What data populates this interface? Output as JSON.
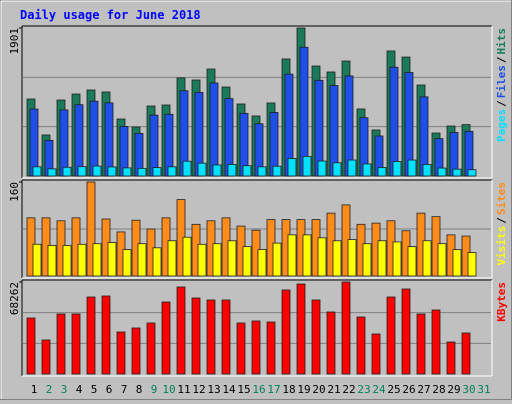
{
  "chart_data": {
    "type": "bar",
    "title": "Daily usage for June 2018",
    "separator": "/",
    "categories": [
      "1",
      "2",
      "3",
      "4",
      "5",
      "6",
      "7",
      "8",
      "9",
      "10",
      "11",
      "12",
      "13",
      "14",
      "15",
      "16",
      "17",
      "18",
      "19",
      "20",
      "21",
      "22",
      "23",
      "24",
      "25",
      "26",
      "27",
      "28",
      "29",
      "30",
      "31"
    ],
    "weekday_color": "#000000",
    "weekend_color": "#00805c",
    "weekend": [
      false,
      true,
      true,
      false,
      false,
      false,
      false,
      false,
      true,
      true,
      false,
      false,
      false,
      false,
      false,
      true,
      true,
      false,
      false,
      false,
      false,
      false,
      true,
      true,
      false,
      false,
      false,
      false,
      false,
      true,
      true
    ],
    "panels": [
      {
        "ylim": [
          0,
          1901
        ],
        "yticks": [
          1901
        ],
        "series": [
          {
            "name": "Pages",
            "color": "#00e0ff",
            "values": [
              118,
              92,
              112,
              120,
              128,
              116,
              104,
              98,
              108,
              118,
              190,
              165,
              142,
              148,
              132,
              118,
              126,
              225,
              252,
              192,
              170,
              205,
              155,
              110,
              185,
              205,
              148,
              102,
              88,
              80,
              null
            ]
          },
          {
            "name": "Files",
            "color": "#1f4fe8",
            "values": [
              860,
              458,
              849,
              916,
              961,
              939,
              637,
              547,
              782,
              793,
              1095,
              1073,
              1195,
              994,
              805,
              671,
              816,
              1308,
              1654,
              1229,
              1162,
              1285,
              749,
              514,
              1397,
              1329,
              1017,
              480,
              559,
              574,
              null
            ]
          },
          {
            "name": "Hits",
            "color": "#1a7a5a",
            "values": [
              989,
              527,
              976,
              1053,
              1105,
              1079,
              732,
              629,
              899,
              912,
              1259,
              1233,
              1374,
              1143,
              925,
              771,
              938,
              1503,
              1901,
              1413,
              1336,
              1477,
              861,
              591,
              1606,
              1528,
              1169,
              552,
              642,
              660,
              null
            ]
          }
        ]
      },
      {
        "ylim": [
          0,
          160
        ],
        "yticks": [
          160
        ],
        "series": [
          {
            "name": "Visits",
            "color": "#ffff00",
            "values": [
              54,
              52,
              52,
              54,
              55,
              57,
              45,
              55,
              48,
              60,
              66,
              54,
              55,
              60,
              50,
              45,
              56,
              70,
              70,
              65,
              60,
              62,
              55,
              60,
              58,
              50,
              60,
              55,
              45,
              40,
              null
            ]
          },
          {
            "name": "Sites",
            "color": "#ff8c1a",
            "values": [
              99,
              99,
              94,
              99,
              160,
              97,
              75,
              95,
              80,
              99,
              130,
              88,
              94,
              99,
              85,
              78,
              96,
              96,
              96,
              96,
              107,
              121,
              88,
              90,
              94,
              77,
              107,
              101,
              70,
              68,
              null
            ]
          }
        ]
      },
      {
        "ylim": [
          0,
          68262
        ],
        "yticks": [
          68262
        ],
        "series": [
          {
            "name": "KBytes",
            "color": "#ff0000",
            "values": [
              41550,
              25230,
              44520,
              44520,
              57130,
              57870,
              31160,
              34130,
              37840,
              53420,
              64550,
              56390,
              54910,
              54910,
              37840,
              39330,
              38580,
              62330,
              66780,
              54910,
              46000,
              68262,
              42290,
              29680,
              57130,
              63070,
              44520,
              47490,
              23740,
              30420,
              null
            ]
          }
        ]
      }
    ]
  }
}
